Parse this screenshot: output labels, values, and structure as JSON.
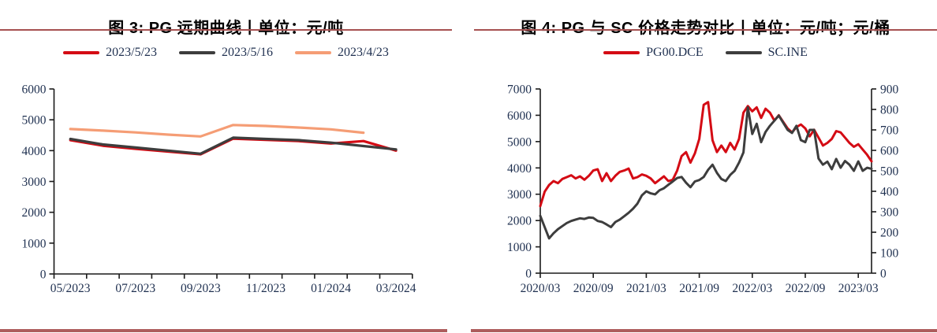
{
  "page": {
    "background": "#ffffff",
    "rule_color": "#a65151",
    "bottom_bar_color": "#ae5d5d",
    "axis_color": "#1a1a1a",
    "tick_label_color": "#1f3050",
    "title_color": "#000000"
  },
  "panels": [
    {
      "title": "图 3: PG 远期曲线丨单位：元/吨"
    },
    {
      "title": "图 4: PG 与 SC 价格走势对比丨单位：元/吨；元/桶"
    }
  ],
  "chart_data": [
    {
      "type": "line",
      "title": "图 3: PG 远期曲线丨单位：元/吨",
      "unit": "元/吨",
      "grid": false,
      "legend_position": "top",
      "categories": [
        "05/2023",
        "06/2023",
        "07/2023",
        "08/2023",
        "09/2023",
        "10/2023",
        "11/2023",
        "12/2023",
        "01/2024",
        "02/2024",
        "03/2024"
      ],
      "x_tick_labels": [
        "05/2023",
        "07/2023",
        "09/2023",
        "11/2023",
        "01/2024",
        "03/2024"
      ],
      "ylim": [
        0,
        6000
      ],
      "y_tick_step": 1000,
      "y_tick_labels": [
        "0",
        "1000",
        "2000",
        "3000",
        "4000",
        "5000",
        "6000"
      ],
      "series": [
        {
          "name": "2023/5/23",
          "color": "#d40b14",
          "values": [
            4340,
            4160,
            4060,
            3970,
            3880,
            4390,
            4350,
            4310,
            4230,
            4310,
            4000
          ]
        },
        {
          "name": "2023/5/16",
          "color": "#3d3d3d",
          "values": [
            4380,
            4200,
            4100,
            4000,
            3900,
            4420,
            4380,
            4340,
            4260,
            4150,
            4040
          ]
        },
        {
          "name": "2023/4/23",
          "color": "#f59d75",
          "values": [
            4700,
            4650,
            4590,
            4520,
            4460,
            4830,
            4800,
            4750,
            4690,
            4580,
            null
          ]
        }
      ]
    },
    {
      "type": "line",
      "title": "图 4: PG 与 SC 价格走势对比丨单位：元/吨；元/桶",
      "units": "元/吨；元/桶",
      "grid": false,
      "legend_position": "top",
      "x_start": "2020/03",
      "x_end": "2023/04",
      "points_per_month": 2,
      "x_tick_labels": [
        "2020/03",
        "2020/09",
        "2021/03",
        "2021/09",
        "2022/03",
        "2022/09",
        "2023/03"
      ],
      "ylim_left": [
        0,
        7000
      ],
      "ylim_right": [
        0,
        900
      ],
      "y_tick_labels_left": [
        "0",
        "1000",
        "2000",
        "3000",
        "4000",
        "5000",
        "6000",
        "7000"
      ],
      "y_tick_labels_right": [
        "0",
        "100",
        "200",
        "300",
        "400",
        "500",
        "600",
        "700",
        "800",
        "900"
      ],
      "series": [
        {
          "name": "PG00.DCE",
          "axis": "left",
          "color": "#d40b14",
          "values": [
            2550,
            3100,
            3350,
            3500,
            3420,
            3580,
            3650,
            3720,
            3600,
            3680,
            3550,
            3700,
            3900,
            3950,
            3500,
            3800,
            3500,
            3700,
            3850,
            3900,
            3975,
            3600,
            3650,
            3750,
            3700,
            3600,
            3420,
            3550,
            3680,
            3500,
            3550,
            3900,
            4450,
            4600,
            4200,
            4550,
            5100,
            6400,
            6500,
            5050,
            4600,
            4850,
            4600,
            4950,
            4700,
            5100,
            6100,
            6350,
            6150,
            6300,
            5900,
            6250,
            6100,
            5800,
            6000,
            5750,
            5500,
            5350,
            5550,
            5650,
            5500,
            5200,
            5450,
            5150,
            4850,
            4950,
            5100,
            5400,
            5350,
            5150,
            4950,
            4800,
            4900,
            4700,
            4500,
            4250
          ]
        },
        {
          "name": "SC.INE",
          "axis": "right",
          "color": "#3d3d3d",
          "values": [
            280,
            225,
            170,
            195,
            215,
            230,
            245,
            255,
            262,
            268,
            265,
            272,
            270,
            255,
            250,
            238,
            225,
            250,
            262,
            278,
            295,
            315,
            340,
            380,
            400,
            390,
            385,
            405,
            415,
            432,
            448,
            465,
            470,
            442,
            420,
            448,
            455,
            470,
            505,
            530,
            490,
            460,
            450,
            480,
            500,
            540,
            590,
            810,
            680,
            730,
            640,
            690,
            720,
            745,
            770,
            735,
            700,
            685,
            720,
            650,
            640,
            700,
            700,
            560,
            530,
            545,
            508,
            558,
            515,
            548,
            530,
            500,
            546,
            500,
            515,
            510
          ]
        }
      ]
    }
  ]
}
